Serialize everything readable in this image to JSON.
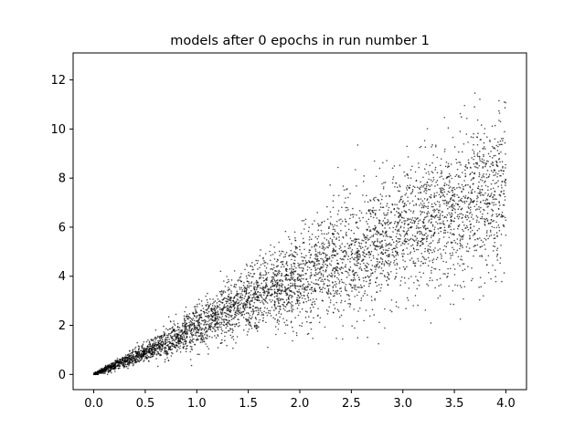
{
  "chart_data": {
    "type": "scatter",
    "title": "models after 0 epochs in run number 1",
    "xlabel": "",
    "ylabel": "",
    "xlim": [
      -0.2,
      4.2
    ],
    "ylim": [
      -0.62,
      13.1
    ],
    "x_ticks": [
      0.0,
      0.5,
      1.0,
      1.5,
      2.0,
      2.5,
      3.0,
      3.5,
      4.0
    ],
    "x_tick_labels": [
      "0.0",
      "0.5",
      "1.0",
      "1.5",
      "2.0",
      "2.5",
      "3.0",
      "3.5",
      "4.0"
    ],
    "y_ticks": [
      0,
      2,
      4,
      6,
      8,
      10,
      12
    ],
    "y_tick_labels": [
      "0",
      "2",
      "4",
      "6",
      "8",
      "10",
      "12"
    ],
    "grid": false,
    "legend": "none",
    "marker_color": "#000000",
    "trend": {
      "description_points": [
        {
          "x": 0.0,
          "y_center": 0.0,
          "y_spread": 0.05
        },
        {
          "x": 0.5,
          "y_center": 0.9,
          "y_spread": 0.4
        },
        {
          "x": 1.0,
          "y_center": 1.9,
          "y_spread": 0.9
        },
        {
          "x": 1.5,
          "y_center": 3.0,
          "y_spread": 1.3
        },
        {
          "x": 2.0,
          "y_center": 3.9,
          "y_spread": 1.8
        },
        {
          "x": 2.5,
          "y_center": 4.8,
          "y_spread": 2.3
        },
        {
          "x": 3.0,
          "y_center": 5.8,
          "y_spread": 2.6
        },
        {
          "x": 3.5,
          "y_center": 6.7,
          "y_spread": 2.9
        },
        {
          "x": 4.0,
          "y_center": 7.6,
          "y_spread": 3.3
        }
      ],
      "x_range": [
        0.0,
        4.0
      ],
      "y_max_observed": 12.5,
      "y_min_observed": 0.0
    }
  }
}
